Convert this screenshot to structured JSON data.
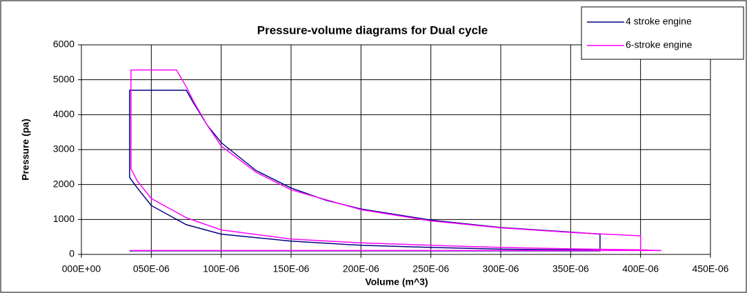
{
  "chart_data": {
    "type": "line",
    "title": "Pressure-volume diagrams for Dual cycle",
    "x_label": "Volume (m^3)",
    "y_label": "Pressure (pa)",
    "xlim": [
      0,
      0.00045
    ],
    "xticks": [
      {
        "value": 0,
        "label": "000E+00"
      },
      {
        "value": 5e-05,
        "label": "050E-06"
      },
      {
        "value": 0.0001,
        "label": "100E-06"
      },
      {
        "value": 0.00015,
        "label": "150E-06"
      },
      {
        "value": 0.0002,
        "label": "200E-06"
      },
      {
        "value": 0.00025,
        "label": "250E-06"
      },
      {
        "value": 0.0003,
        "label": "300E-06"
      },
      {
        "value": 0.00035,
        "label": "350E-06"
      },
      {
        "value": 0.0004,
        "label": "400E-06"
      },
      {
        "value": 0.00045,
        "label": "450E-06"
      }
    ],
    "ylim": [
      0,
      6000
    ],
    "yticks": [
      0,
      1000,
      2000,
      3000,
      4000,
      5000,
      6000
    ],
    "grid": true,
    "legend": "top-right",
    "series": [
      {
        "name": "4 stroke engine",
        "color": "#000080",
        "x": [
          3.45e-05,
          0.000371,
          0.000371,
          0.0003,
          0.00025,
          0.0002,
          0.00015,
          0.0001,
          7.5e-05,
          5e-05,
          4e-05,
          3.45e-05,
          3.45e-05,
          7.5e-05,
          8e-05,
          9e-05,
          0.0001,
          0.000125,
          0.00015,
          0.000175,
          0.0002,
          0.00025,
          0.0003,
          0.00035,
          0.000371,
          0.000371
        ],
        "values": [
          100,
          100,
          120,
          150,
          200,
          260,
          380,
          580,
          850,
          1400,
          1900,
          2200,
          4700,
          4700,
          4350,
          3700,
          3200,
          2400,
          1900,
          1550,
          1300,
          980,
          770,
          640,
          580,
          120
        ]
      },
      {
        "name": "6-stroke engine",
        "color": "#ff00ff",
        "x": [
          3.55e-05,
          0.000415,
          0.0004,
          0.00035,
          0.0003,
          0.00025,
          0.0002,
          0.00015,
          0.0001,
          7.5e-05,
          5e-05,
          4e-05,
          3.55e-05,
          3.55e-05,
          6.8e-05,
          7.5e-05,
          8e-05,
          9e-05,
          0.0001,
          0.000125,
          0.00015,
          0.0002,
          0.00025,
          0.0003,
          0.00035,
          0.0004,
          0.0004
        ],
        "values": [
          110,
          110,
          130,
          160,
          200,
          260,
          330,
          440,
          700,
          1050,
          1600,
          2100,
          2450,
          5280,
          5280,
          4800,
          4400,
          3700,
          3100,
          2350,
          1850,
          1280,
          960,
          760,
          630,
          530,
          110
        ]
      }
    ]
  }
}
